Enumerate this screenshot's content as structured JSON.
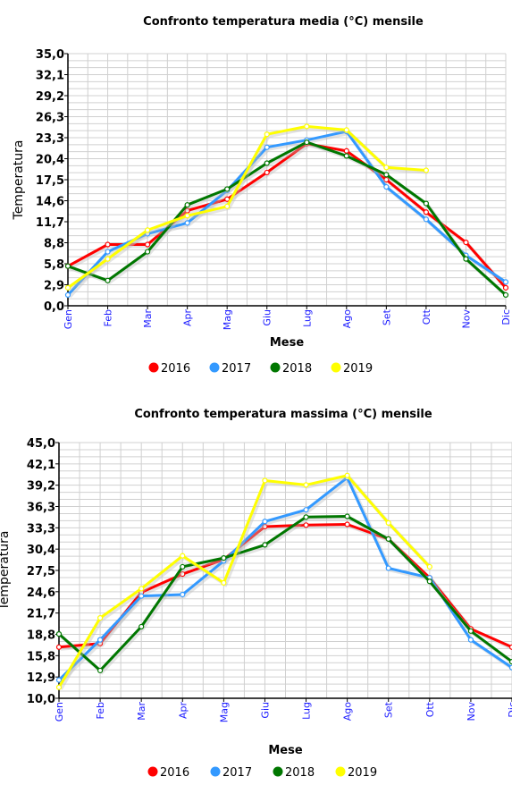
{
  "chart_data": [
    {
      "type": "line",
      "title": "Confronto temperatura media (°C) mensile",
      "xlabel": "Mese",
      "ylabel": "Temperatura",
      "categories": [
        "Gen",
        "Feb",
        "Mar",
        "Apr",
        "Mag",
        "Giu",
        "Lug",
        "Ago",
        "Set",
        "Ott",
        "Nov",
        "Dic"
      ],
      "yticks": [
        "0,0",
        "2,9",
        "5,8",
        "8,8",
        "11,7",
        "14,6",
        "17,5",
        "20,4",
        "23,3",
        "26,3",
        "29,2",
        "32,1",
        "35,0"
      ],
      "ylim": [
        0,
        35
      ],
      "grid": true,
      "legend_position": "bottom",
      "series": [
        {
          "name": "2016",
          "color": "#ff0000",
          "values": [
            5.5,
            8.5,
            8.5,
            13.2,
            14.8,
            18.5,
            22.5,
            21.5,
            17.5,
            13,
            8.8,
            2.5
          ]
        },
        {
          "name": "2017",
          "color": "#3399ff",
          "values": [
            1.5,
            7.5,
            10,
            11.5,
            16,
            22,
            23,
            24.2,
            16.5,
            12,
            7,
            3.3
          ]
        },
        {
          "name": "2018",
          "color": "#007700",
          "values": [
            5.5,
            3.5,
            7.5,
            14,
            16.2,
            19.8,
            22.7,
            20.8,
            18.2,
            14.2,
            6.5,
            1.5
          ]
        },
        {
          "name": "2019",
          "color": "#ffff00",
          "values": [
            2.5,
            6.5,
            10.5,
            12.5,
            13.8,
            23.8,
            24.9,
            24.4,
            19.2,
            18.8,
            null,
            null
          ]
        }
      ]
    },
    {
      "type": "line",
      "title": "Confronto temperatura massima (°C) mensile",
      "xlabel": "Mese",
      "ylabel": "Temperatura",
      "categories": [
        "Gen",
        "Feb",
        "Mar",
        "Apr",
        "Mag",
        "Giu",
        "Lug",
        "Ago",
        "Set",
        "Ott",
        "Nov",
        "Dic"
      ],
      "yticks": [
        "10,0",
        "12,9",
        "15,8",
        "18,8",
        "21,7",
        "24,6",
        "27,5",
        "30,4",
        "33,3",
        "36,3",
        "39,2",
        "42,1",
        "45,0"
      ],
      "ylim": [
        10,
        45
      ],
      "grid": true,
      "legend_position": "bottom",
      "series": [
        {
          "name": "2016",
          "color": "#ff0000",
          "values": [
            17,
            17.5,
            24.5,
            27,
            29,
            33.5,
            33.7,
            33.8,
            31.8,
            26.5,
            19.5,
            17
          ]
        },
        {
          "name": "2017",
          "color": "#3399ff",
          "values": [
            12.5,
            18,
            24,
            24.2,
            28.8,
            34.2,
            35.8,
            40.2,
            27.8,
            26.5,
            18,
            14.2
          ]
        },
        {
          "name": "2018",
          "color": "#007700",
          "values": [
            18.8,
            13.8,
            19.8,
            28,
            29.2,
            31,
            34.8,
            34.9,
            31.8,
            26,
            19.2,
            15
          ]
        },
        {
          "name": "2019",
          "color": "#ffff00",
          "values": [
            11.5,
            21,
            25,
            29.5,
            25.8,
            39.8,
            39.2,
            40.5,
            34,
            28,
            null,
            null
          ]
        }
      ]
    }
  ]
}
